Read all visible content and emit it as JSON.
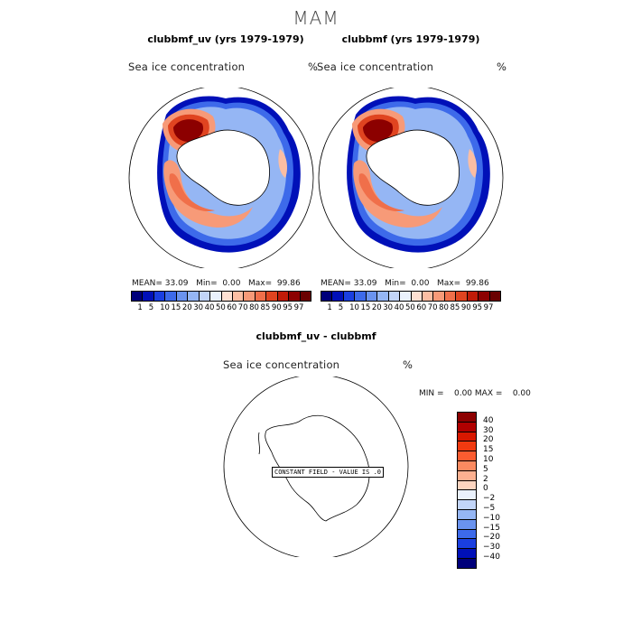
{
  "main_title": "MAM",
  "panels": [
    {
      "title": "clubbmf_uv (yrs 1979-1979)",
      "field": "Sea ice concentration",
      "units": "%",
      "stats": {
        "mean_label": "MEAN=",
        "mean": "33.09",
        "min_label": "Min=",
        "min": "0.00",
        "max_label": "Max=",
        "max": "99.86"
      }
    },
    {
      "title": "clubbmf (yrs 1979-1979)",
      "field": "Sea ice concentration",
      "units": "%",
      "stats": {
        "mean_label": "MEAN=",
        "mean": "33.09",
        "min_label": "Min=",
        "min": "0.00",
        "max_label": "Max=",
        "max": "99.86"
      }
    }
  ],
  "abs_colorbar": {
    "levels": [
      "1",
      "5",
      "10",
      "15",
      "20",
      "30",
      "40",
      "50",
      "60",
      "70",
      "80",
      "85",
      "90",
      "95",
      "97"
    ],
    "colors": [
      "#00007a",
      "#0010b8",
      "#1a3fe0",
      "#3d6aea",
      "#6a93ef",
      "#95b6f4",
      "#c2d5f8",
      "#eaf1fc",
      "#fde0d2",
      "#fbbea3",
      "#f79a78",
      "#f06f4a",
      "#e04420",
      "#c01b08",
      "#8c0000",
      "#6a0000"
    ]
  },
  "diff_panel": {
    "title": "clubbmf_uv - clubbmf",
    "field": "Sea ice concentration",
    "units": "%",
    "stats_text": "MIN =    0.00 MAX =    0.00",
    "constant_field": "CONSTANT FIELD - VALUE IS .0"
  },
  "diff_colorbar": {
    "levels": [
      "40",
      "30",
      "20",
      "15",
      "10",
      "5",
      "2",
      "0",
      "−2",
      "−5",
      "−10",
      "−15",
      "−20",
      "−30",
      "−40"
    ],
    "colors": [
      "#8c0000",
      "#b00000",
      "#d81800",
      "#f03a10",
      "#fb5c30",
      "#fb8a60",
      "#fcb090",
      "#fdd5c0",
      "#eaf1fc",
      "#c2d5f8",
      "#95b6f4",
      "#6a93ef",
      "#3d6aea",
      "#1a3fe0",
      "#0010b8",
      "#00007a"
    ]
  }
}
